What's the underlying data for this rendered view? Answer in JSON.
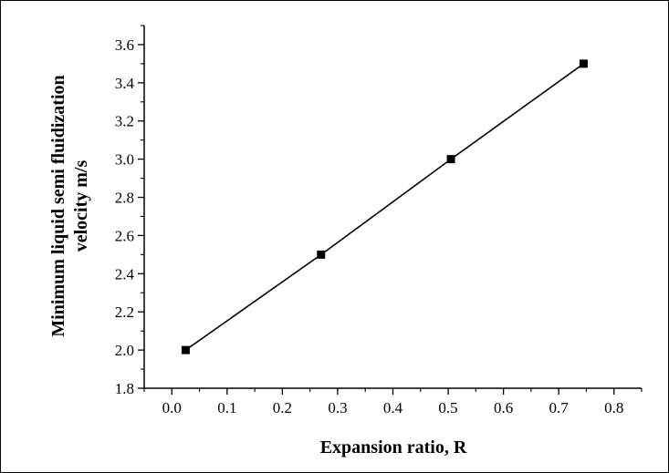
{
  "chart_data": {
    "type": "line",
    "title": "",
    "xlabel": "Expansion ratio, R",
    "ylabel_lines": [
      "Minimum liquid semi fluidization",
      "velocity m/s"
    ],
    "xlim": [
      -0.05,
      0.85
    ],
    "ylim": [
      1.8,
      3.7
    ],
    "x_ticks": [
      0.0,
      0.1,
      0.2,
      0.3,
      0.4,
      0.5,
      0.6,
      0.7,
      0.8
    ],
    "x_tick_labels": [
      "0.0",
      "0.1",
      "0.2",
      "0.3",
      "0.4",
      "0.5",
      "0.6",
      "0.7",
      "0.8"
    ],
    "y_ticks": [
      1.8,
      2.0,
      2.2,
      2.4,
      2.6,
      2.8,
      3.0,
      3.2,
      3.4,
      3.6
    ],
    "y_tick_labels": [
      "1.8",
      "2.0",
      "2.2",
      "2.4",
      "2.6",
      "2.8",
      "3.0",
      "3.2",
      "3.4",
      "3.6"
    ],
    "grid": false,
    "legend": "none",
    "marker": "square",
    "line_color": "#000000",
    "series": [
      {
        "x": [
          0.025,
          0.27,
          0.505,
          0.745
        ],
        "y": [
          2.0,
          2.5,
          3.0,
          3.5
        ]
      }
    ]
  }
}
